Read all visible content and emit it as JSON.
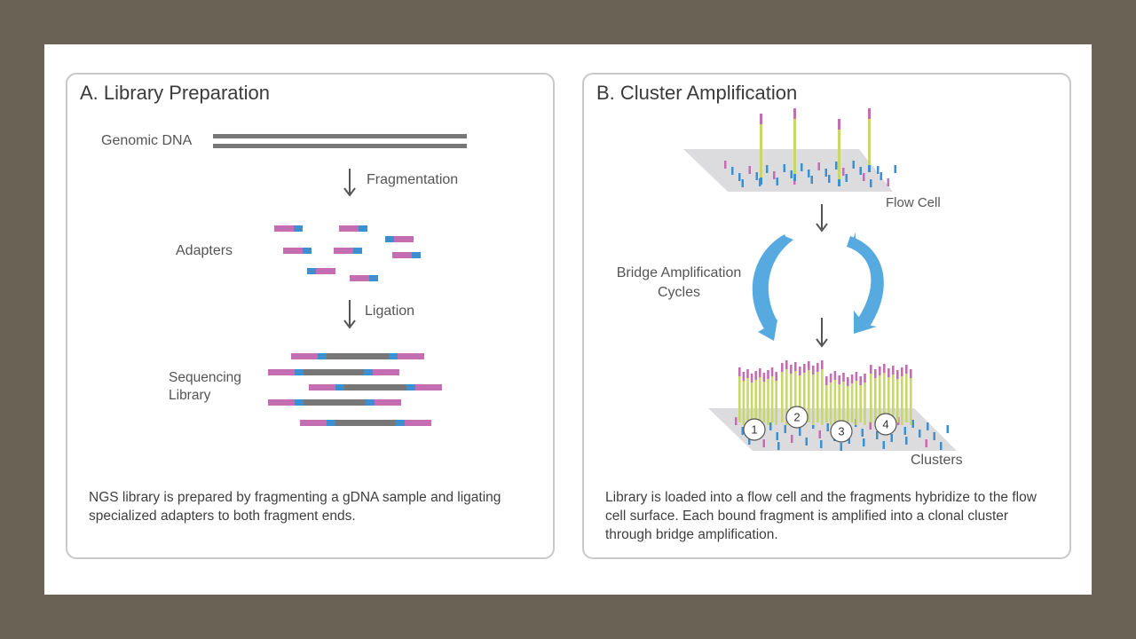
{
  "colors": {
    "background": "#6b6256",
    "dna": "#777777",
    "adapter_pink": "#c46db3",
    "adapter_blue": "#3d8fd0",
    "strand_green": "#c9d66a",
    "arrow_blue": "#56aadf",
    "flow_cell": "#d9d9dc"
  },
  "panel_a": {
    "title": "A. Library Preparation",
    "labels": {
      "genomic_dna": "Genomic DNA",
      "fragmentation": "Fragmentation",
      "adapters": "Adapters",
      "ligation": "Ligation",
      "sequencing_library": "Sequencing Library"
    },
    "caption": "NGS library is prepared by fragmenting a gDNA sample and ligating specialized adapters to both fragment ends."
  },
  "panel_b": {
    "title": "B. Cluster Amplification",
    "labels": {
      "flow_cell": "Flow Cell",
      "bridge_amplification": "Bridge Amplification Cycles",
      "clusters": "Clusters"
    },
    "cluster_numbers": [
      "1",
      "2",
      "3",
      "4"
    ],
    "caption": "Library is loaded into a flow cell and the fragments hybridize to the flow cell surface. Each bound fragment is amplified into a clonal cluster through bridge amplification."
  }
}
